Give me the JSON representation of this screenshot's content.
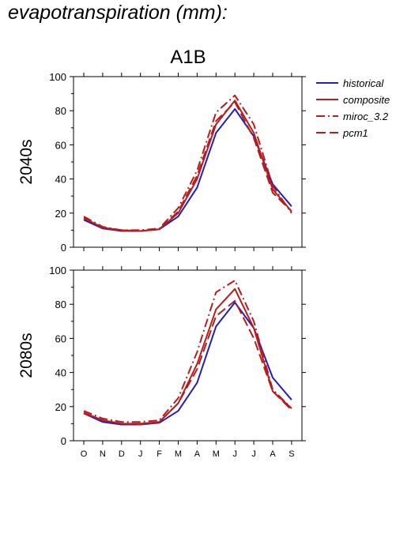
{
  "page": {
    "title": "evapotranspiration (mm):"
  },
  "colors": {
    "historical": "#2020b8",
    "scenario": "#b81c1c",
    "axis": "#000000"
  },
  "chart_data": {
    "type": "line",
    "scenario_title": "A1B",
    "categories": [
      "O",
      "N",
      "D",
      "J",
      "F",
      "M",
      "A",
      "M",
      "J",
      "J",
      "A",
      "S"
    ],
    "ylim": [
      0,
      100
    ],
    "yticks": [
      0,
      20,
      40,
      60,
      80,
      100
    ],
    "legend": {
      "placement": "top-right",
      "entries": [
        {
          "name": "historical",
          "dash": "solid",
          "color_key": "historical"
        },
        {
          "name": "composite",
          "dash": "solid",
          "color_key": "scenario"
        },
        {
          "name": "miroc_3.2",
          "dash": "dashdot",
          "color_key": "scenario"
        },
        {
          "name": "pcm1",
          "dash": "dash",
          "color_key": "scenario"
        }
      ]
    },
    "panels": [
      {
        "row_label": "2040s",
        "series": [
          {
            "name": "historical",
            "values": [
              16,
              11,
              9.5,
              9.5,
              10.5,
              18,
              35,
              67,
              81,
              65,
              37,
              24
            ]
          },
          {
            "name": "composite",
            "values": [
              17,
              11.5,
              10,
              9.5,
              10.5,
              20,
              40,
              72,
              86,
              67,
              34,
              21
            ]
          },
          {
            "name": "miroc_3.2",
            "values": [
              18,
              12,
              10,
              10,
              11,
              23,
              45,
              79,
              89,
              72,
              36,
              20
            ]
          },
          {
            "name": "pcm1",
            "values": [
              17,
              11.5,
              9.5,
              9.5,
              10.5,
              21,
              42,
              74,
              85,
              64,
              32,
              21
            ]
          }
        ]
      },
      {
        "row_label": "2080s",
        "series": [
          {
            "name": "historical",
            "values": [
              16,
              11,
              9.5,
              9.5,
              10.5,
              17.5,
              34,
              67,
              81,
              66,
              37,
              24
            ]
          },
          {
            "name": "composite",
            "values": [
              16.5,
              12,
              10,
              10,
              11,
              22,
              45,
              77,
              89,
              66,
              29,
              19
            ]
          },
          {
            "name": "miroc_3.2",
            "values": [
              17.5,
              13,
              11,
              11,
              12,
              25,
              52,
              87,
              94,
              70,
              30,
              19
            ]
          },
          {
            "name": "pcm1",
            "values": [
              16,
              12,
              10,
              9.5,
              11,
              22,
              42,
              73,
              82,
              60,
              29,
              18
            ]
          }
        ]
      }
    ]
  }
}
